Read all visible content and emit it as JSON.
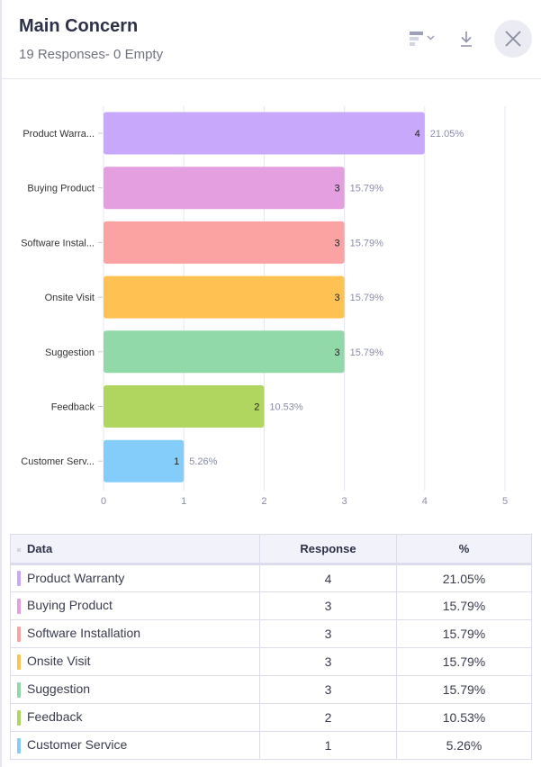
{
  "header": {
    "title": "Main Concern",
    "subtitle": "19 Responses- 0 Empty"
  },
  "icons": {
    "chart_type": "bar-chart-icon",
    "download": "download-icon",
    "close": "close-icon"
  },
  "chart_data": {
    "type": "bar",
    "orientation": "horizontal",
    "categories": [
      "Product Warranty",
      "Buying Product",
      "Software Installation",
      "Onsite Visit",
      "Suggestion",
      "Feedback",
      "Customer Service"
    ],
    "category_labels": [
      "Product Warra...",
      "Buying Product",
      "Software Instal...",
      "Onsite Visit",
      "Suggestion",
      "Feedback",
      "Customer Serv..."
    ],
    "values": [
      4,
      3,
      3,
      3,
      3,
      2,
      1
    ],
    "percent_labels": [
      "21.05%",
      "15.79%",
      "15.79%",
      "15.79%",
      "15.79%",
      "10.53%",
      "5.26%"
    ],
    "colors": [
      "#c7a8fb",
      "#e39fe0",
      "#fba2a2",
      "#ffc152",
      "#92d9aa",
      "#b1d660",
      "#84cdfb"
    ],
    "xlim": [
      0,
      5
    ],
    "xticks": [
      "0",
      "1",
      "2",
      "3",
      "4",
      "5"
    ],
    "grid": true
  },
  "table": {
    "headers": [
      "Data",
      "Response",
      "%"
    ],
    "rows": [
      {
        "label": "Product Warranty",
        "response": "4",
        "percent": "21.05%"
      },
      {
        "label": "Buying Product",
        "response": "3",
        "percent": "15.79%"
      },
      {
        "label": "Software Installation",
        "response": "3",
        "percent": "15.79%"
      },
      {
        "label": "Onsite Visit",
        "response": "3",
        "percent": "15.79%"
      },
      {
        "label": "Suggestion",
        "response": "3",
        "percent": "15.79%"
      },
      {
        "label": "Feedback",
        "response": "2",
        "percent": "10.53%"
      },
      {
        "label": "Customer Service",
        "response": "1",
        "percent": "5.26%"
      }
    ]
  }
}
